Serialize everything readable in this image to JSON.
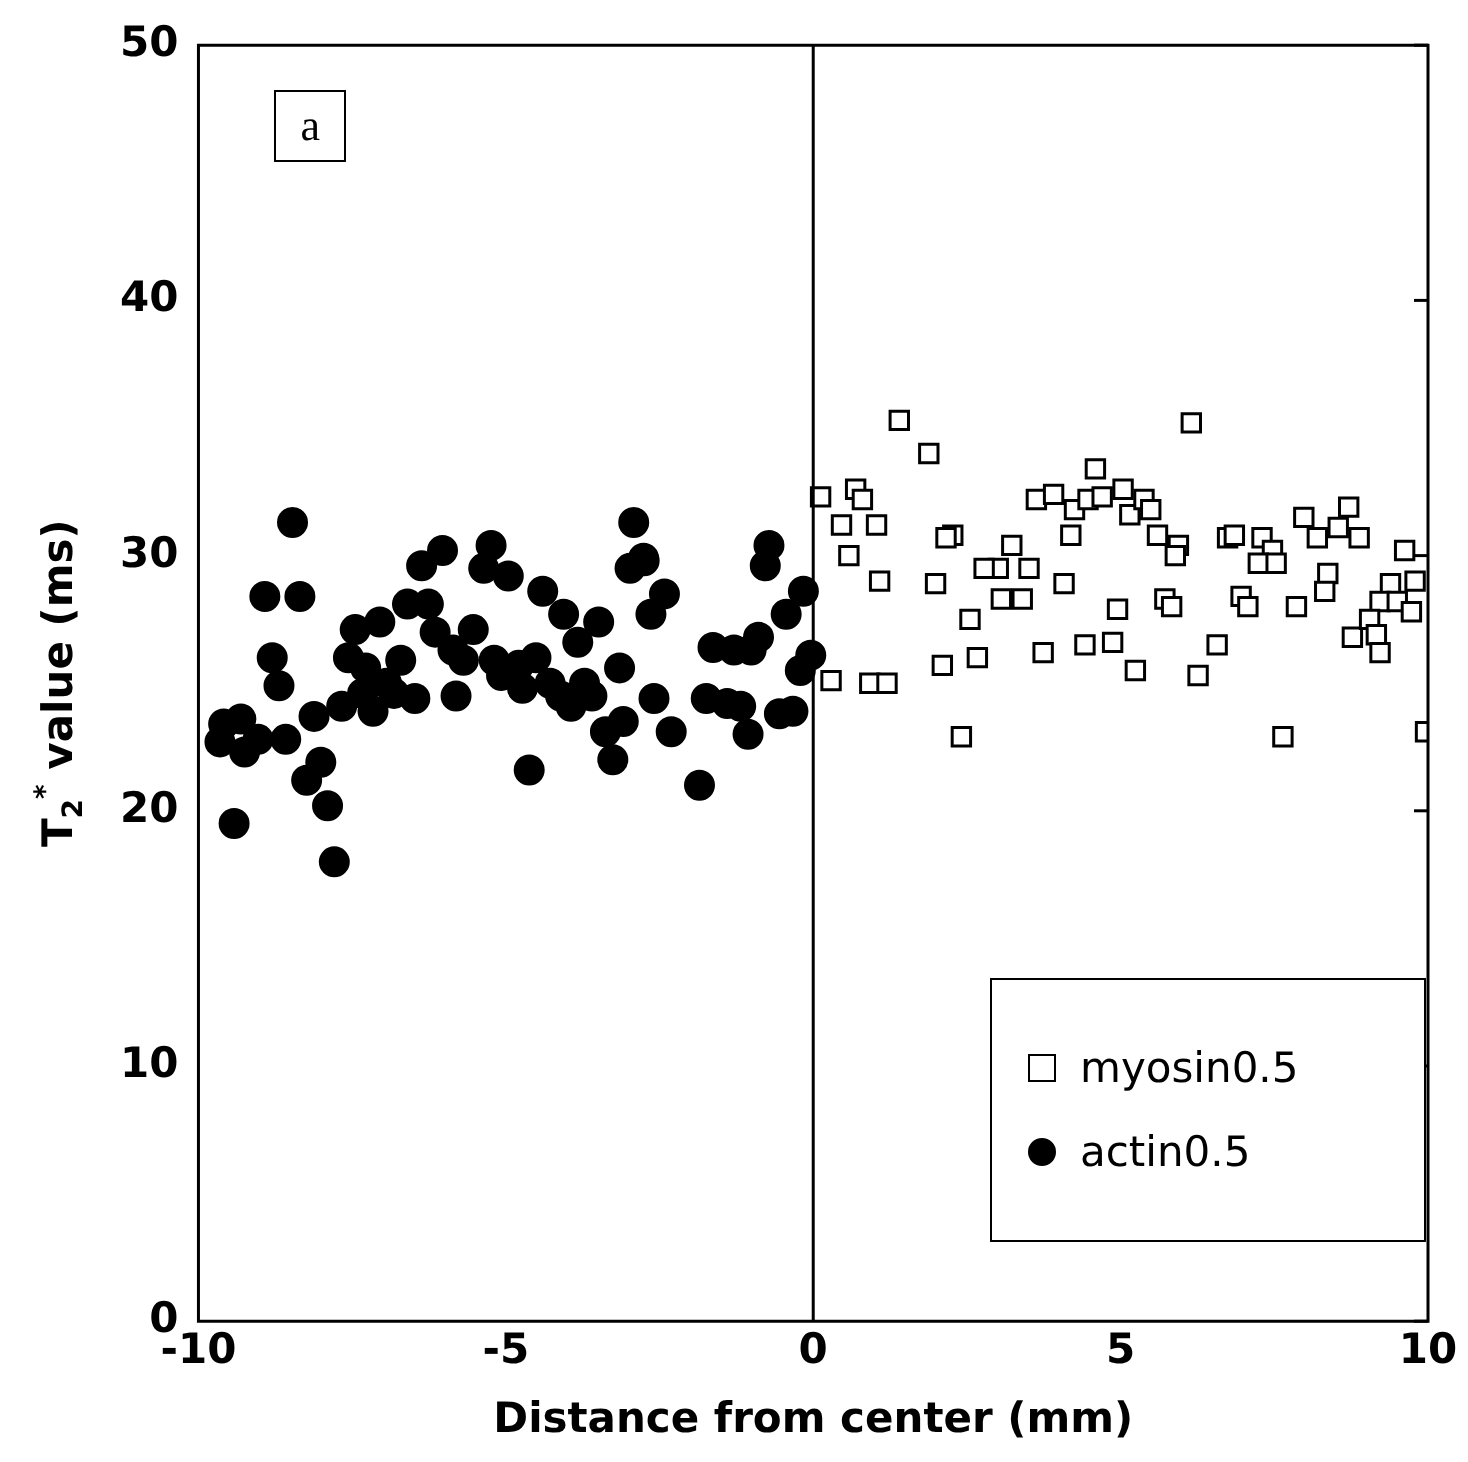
{
  "chart_data": {
    "type": "scatter",
    "xlabel": "Distance from center (mm)",
    "ylabel": "T$_{2}$$^{*}$ value (ms)",
    "annotations": [
      "a"
    ],
    "xlim": [
      -10,
      10
    ],
    "xticks": [
      -10,
      -5,
      0,
      5,
      10
    ],
    "ylim": [
      0,
      50
    ],
    "yticks": [
      0,
      10,
      20,
      30,
      40,
      50
    ],
    "grid": false,
    "legend": "bottom right",
    "ref_lines": [
      {
        "axis": "x",
        "value": 0,
        "color": "#000000"
      }
    ],
    "series": [
      {
        "name": "myosin0.5",
        "color": "#ffffff",
        "marker": "square",
        "x": [
          0.12,
          0.69,
          0.8,
          0.46,
          1.03,
          0.58,
          1.08,
          0.29,
          0.92,
          1.2,
          1.4,
          1.88,
          2.27,
          2.16,
          1.99,
          2.55,
          2.1,
          2.67,
          3.01,
          2.78,
          3.23,
          3.51,
          3.06,
          3.4,
          4.08,
          3.74,
          3.63,
          3.91,
          4.25,
          4.19,
          4.59,
          4.47,
          4.7,
          5.04,
          5.15,
          5.38,
          5.49,
          5.6,
          5.94,
          5.89,
          4.95,
          4.42,
          4.87,
          5.24,
          5.72,
          5.83,
          2.41,
          6.15,
          6.74,
          6.85,
          7.3,
          7.47,
          7.24,
          7.53,
          6.96,
          7.07,
          7.86,
          8.37,
          8.32,
          7.98,
          8.2,
          8.71,
          8.54,
          8.88,
          9.62,
          9.39,
          9.79,
          9.22,
          9.5,
          9.73,
          8.77,
          9.05,
          9.16,
          9.22,
          6.57,
          6.26,
          7.64,
          9.96
        ],
        "values": [
          32.3,
          32.6,
          32.2,
          31.2,
          31.2,
          30.0,
          29.0,
          25.1,
          25.0,
          25.0,
          35.3,
          34.0,
          30.8,
          30.7,
          28.9,
          27.5,
          25.7,
          26.0,
          29.5,
          29.5,
          30.4,
          29.5,
          28.3,
          28.3,
          28.9,
          26.2,
          32.2,
          32.4,
          31.8,
          30.8,
          33.4,
          32.2,
          32.3,
          32.6,
          31.6,
          32.2,
          31.8,
          30.8,
          30.4,
          30.0,
          27.9,
          26.5,
          26.6,
          25.5,
          28.3,
          28.0,
          22.9,
          35.2,
          30.7,
          30.8,
          30.7,
          30.2,
          29.7,
          29.7,
          28.4,
          28.0,
          28.0,
          29.3,
          28.6,
          31.5,
          30.7,
          31.9,
          31.1,
          30.7,
          30.2,
          28.9,
          29.0,
          28.2,
          28.2,
          27.8,
          26.8,
          27.5,
          26.9,
          26.2,
          26.5,
          25.3,
          22.9,
          23.1
        ]
      },
      {
        "name": "actin0.5",
        "color": "#000000",
        "marker": "circle",
        "x": [
          -8.92,
          -8.35,
          -8.8,
          -8.69,
          -9.59,
          -9.31,
          -9.65,
          -9.25,
          -9.03,
          -8.58,
          -9.42,
          -8.12,
          -8.24,
          -8.01,
          -7.9,
          -7.79,
          -7.67,
          -7.45,
          -7.05,
          -7.56,
          -7.28,
          -7.16,
          -7.33,
          -6.94,
          -6.71,
          -6.48,
          -6.82,
          -6.6,
          -6.26,
          -6.37,
          -6.03,
          -6.15,
          -5.86,
          -5.69,
          -5.53,
          -5.81,
          -5.36,
          -4.96,
          -5.24,
          -5.19,
          -5.07,
          -4.79,
          -4.51,
          -4.73,
          -4.28,
          -4.11,
          -3.94,
          -3.72,
          -3.6,
          -4.4,
          -4.06,
          -3.83,
          -3.49,
          -3.15,
          -3.38,
          -3.09,
          -3.26,
          -4.62,
          -2.98,
          -2.76,
          -2.42,
          -2.64,
          -2.59,
          -2.31,
          -1.85,
          -1.63,
          -1.29,
          -1.01,
          -0.89,
          -1.74,
          -1.4,
          -1.18,
          -1.06,
          -0.55,
          -0.33,
          -0.44,
          -0.16,
          -0.21,
          -0.04,
          -0.78,
          -0.72,
          -8.47,
          -2.92,
          -2.75
        ],
        "values": [
          28.4,
          28.4,
          26.0,
          24.9,
          23.4,
          23.6,
          22.7,
          22.3,
          22.8,
          22.8,
          19.5,
          23.7,
          21.2,
          21.9,
          20.2,
          18.0,
          24.1,
          27.1,
          27.4,
          26.0,
          25.6,
          23.9,
          24.6,
          25.0,
          25.9,
          24.4,
          24.6,
          28.1,
          28.1,
          29.6,
          30.2,
          27.0,
          26.3,
          25.9,
          27.1,
          24.5,
          29.5,
          29.2,
          30.4,
          25.9,
          25.3,
          25.7,
          26.0,
          24.8,
          25.0,
          24.5,
          24.1,
          25.0,
          24.5,
          28.6,
          27.7,
          26.6,
          27.4,
          25.6,
          23.1,
          23.5,
          22.0,
          21.6,
          29.5,
          29.9,
          28.5,
          27.7,
          24.4,
          23.1,
          21.0,
          26.4,
          26.3,
          26.3,
          26.8,
          24.4,
          24.2,
          24.1,
          23.0,
          23.8,
          23.9,
          27.7,
          28.6,
          25.5,
          26.1,
          29.6,
          30.4,
          31.3,
          31.3,
          29.8
        ]
      }
    ]
  }
}
